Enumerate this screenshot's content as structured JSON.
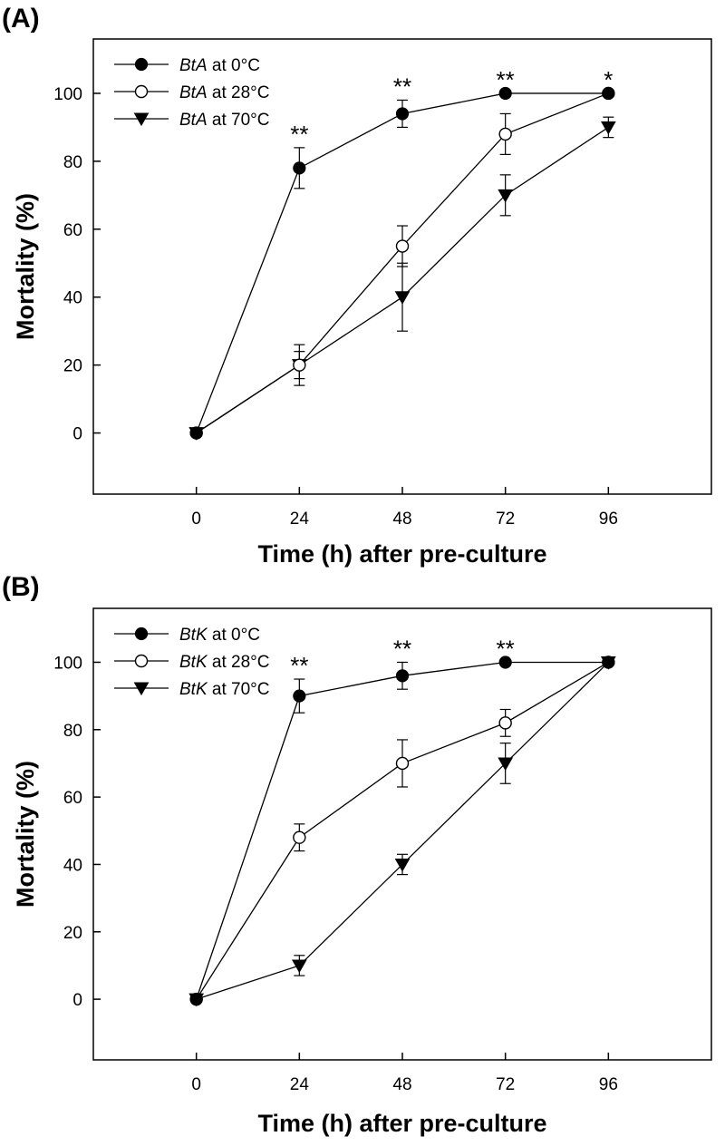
{
  "chart_data": [
    {
      "type": "line",
      "panel_label": "(A)",
      "xlabel": "Time (h) after pre-culture",
      "ylabel": "Mortality (%)",
      "x": [
        0,
        24,
        48,
        72,
        96
      ],
      "xticks": [
        "0",
        "24",
        "48",
        "72",
        "96"
      ],
      "yticks": [
        "0",
        "20",
        "40",
        "60",
        "80",
        "100"
      ],
      "xlim": [
        -24,
        120
      ],
      "ylim": [
        -18,
        116
      ],
      "grid": false,
      "legend_position": "top-left",
      "series": [
        {
          "name": "BtA at 0°C",
          "name_italic": "BtA",
          "name_rest": " at 0°C",
          "marker": "filled-circle",
          "values": [
            0,
            78,
            94,
            100,
            100
          ],
          "errors": [
            0,
            6,
            4,
            0,
            0
          ]
        },
        {
          "name": "BtA at 28°C",
          "name_italic": "BtA",
          "name_rest": " at 28°C",
          "marker": "open-circle",
          "values": [
            0,
            20,
            55,
            88,
            100
          ],
          "errors": [
            0,
            6,
            6,
            6,
            0
          ]
        },
        {
          "name": "BtA at 70°C",
          "name_italic": "BtA",
          "name_rest": " at 70°C",
          "marker": "filled-triangle-down",
          "values": [
            0,
            20,
            40,
            70,
            90
          ],
          "errors": [
            0,
            4,
            10,
            6,
            3
          ]
        }
      ],
      "annotations": [
        {
          "x": 24,
          "y": 84,
          "text": "**"
        },
        {
          "x": 48,
          "y": 98,
          "text": "**"
        },
        {
          "x": 72,
          "y": 100,
          "text": "**"
        },
        {
          "x": 96,
          "y": 100,
          "text": "*"
        }
      ]
    },
    {
      "type": "line",
      "panel_label": "(B)",
      "xlabel": "Time (h) after pre-culture",
      "ylabel": "Mortality (%)",
      "x": [
        0,
        24,
        48,
        72,
        96
      ],
      "xticks": [
        "0",
        "24",
        "48",
        "72",
        "96"
      ],
      "yticks": [
        "0",
        "20",
        "40",
        "60",
        "80",
        "100"
      ],
      "xlim": [
        -24,
        120
      ],
      "ylim": [
        -18,
        116
      ],
      "grid": false,
      "legend_position": "top-left",
      "series": [
        {
          "name": "BtK at 0°C",
          "name_italic": "BtK",
          "name_rest": " at 0°C",
          "marker": "filled-circle",
          "values": [
            0,
            90,
            96,
            100,
            100
          ],
          "errors": [
            0,
            5,
            4,
            0,
            0
          ]
        },
        {
          "name": "BtK at 28°C",
          "name_italic": "BtK",
          "name_rest": " at 28°C",
          "marker": "open-circle",
          "values": [
            0,
            48,
            70,
            82,
            100
          ],
          "errors": [
            0,
            4,
            7,
            4,
            0
          ]
        },
        {
          "name": "BtK at 70°C",
          "name_italic": "BtK",
          "name_rest": " at 70°C",
          "marker": "filled-triangle-down",
          "values": [
            0,
            10,
            40,
            70,
            100
          ],
          "errors": [
            0,
            3,
            3,
            6,
            0
          ]
        }
      ],
      "annotations": [
        {
          "x": 24,
          "y": 95,
          "text": "**"
        },
        {
          "x": 48,
          "y": 100,
          "text": "**"
        },
        {
          "x": 72,
          "y": 100,
          "text": "**"
        }
      ]
    }
  ]
}
